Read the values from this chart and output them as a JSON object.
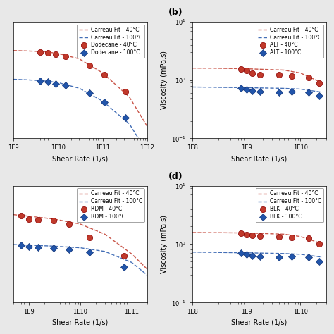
{
  "subplots": [
    {
      "label": "",
      "fluid": "Dodecane",
      "xlim": [
        1000000000.0,
        1000000000000.0
      ],
      "ylim": [
        0.08,
        4.0
      ],
      "xlabel": "Shear Rate (1/s)",
      "ylabel": "",
      "show_ylabel": false,
      "show_yticks": false,
      "xticks": [
        1000000000.0,
        10000000000.0,
        100000000000.0,
        1000000000000.0
      ],
      "legend_labels": [
        "Dodecane - 40°C",
        "Dodecane - 100°C",
        "Carreau Fit - 40°C",
        "Carreau Fit - 100°C"
      ],
      "data_40": {
        "x": [
          4000000000.0,
          6000000000.0,
          9000000000.0,
          15000000000.0,
          50000000000.0,
          110000000000.0,
          320000000000.0
        ],
        "y": [
          1.45,
          1.42,
          1.35,
          1.25,
          0.92,
          0.68,
          0.38
        ]
      },
      "data_100": {
        "x": [
          4000000000.0,
          6000000000.0,
          9000000000.0,
          15000000000.0,
          50000000000.0,
          110000000000.0,
          320000000000.0
        ],
        "y": [
          0.55,
          0.53,
          0.5,
          0.47,
          0.37,
          0.27,
          0.16
        ]
      },
      "fit_40": {
        "x": [
          1000000000.0,
          2000000000.0,
          5000000000.0,
          10000000000.0,
          30000000000.0,
          100000000000.0,
          400000000000.0,
          1000000000000.0
        ],
        "y": [
          1.52,
          1.5,
          1.46,
          1.38,
          1.15,
          0.72,
          0.32,
          0.12
        ]
      },
      "fit_100": {
        "x": [
          1000000000.0,
          2000000000.0,
          5000000000.0,
          10000000000.0,
          30000000000.0,
          100000000000.0,
          400000000000.0,
          1000000000000.0
        ],
        "y": [
          0.58,
          0.57,
          0.55,
          0.52,
          0.43,
          0.28,
          0.13,
          0.05
        ]
      }
    },
    {
      "label": "(b)",
      "fluid": "ALT",
      "xlim": [
        100000000.0,
        30000000000.0
      ],
      "ylim": [
        0.1,
        10
      ],
      "xlabel": "Shear Rate (1/s)",
      "ylabel": "Viscosity (mPa.s)",
      "show_ylabel": true,
      "show_yticks": true,
      "xticks": [
        100000000.0,
        1000000000.0,
        10000000000.0
      ],
      "legend_labels": [
        "ALT - 40°C",
        "ALT - 100°C",
        "Carreau Fit - 40°C",
        "Carreau Fit - 100°C"
      ],
      "data_40": {
        "x": [
          800000000.0,
          1000000000.0,
          1300000000.0,
          1800000000.0,
          4000000000.0,
          7000000000.0,
          14000000000.0,
          22000000000.0
        ],
        "y": [
          1.55,
          1.45,
          1.3,
          1.25,
          1.22,
          1.18,
          1.12,
          0.88
        ]
      },
      "data_100": {
        "x": [
          800000000.0,
          1000000000.0,
          1300000000.0,
          1800000000.0,
          4000000000.0,
          7000000000.0,
          14000000000.0,
          22000000000.0
        ],
        "y": [
          0.72,
          0.68,
          0.65,
          0.63,
          0.62,
          0.64,
          0.62,
          0.53
        ]
      },
      "fit_40": {
        "x": [
          100000000.0,
          300000000.0,
          1000000000.0,
          5000000000.0,
          10000000000.0,
          25000000000.0
        ],
        "y": [
          1.6,
          1.59,
          1.56,
          1.48,
          1.32,
          0.9
        ]
      },
      "fit_100": {
        "x": [
          100000000.0,
          300000000.0,
          1000000000.0,
          5000000000.0,
          10000000000.0,
          25000000000.0
        ],
        "y": [
          0.76,
          0.75,
          0.74,
          0.72,
          0.7,
          0.62
        ]
      }
    },
    {
      "label": "",
      "fluid": "RDM",
      "xlim": [
        500000000.0,
        200000000000.0
      ],
      "ylim": [
        0.1,
        8.0
      ],
      "xlabel": "Shear Rate (1/s)",
      "ylabel": "",
      "show_ylabel": false,
      "show_yticks": false,
      "xticks": [
        1000000000.0,
        10000000000.0,
        100000000000.0
      ],
      "legend_labels": [
        "RDM - 40°C",
        "RDM - 100°C",
        "Carreau Fit - 40°C",
        "Carreau Fit - 100°C"
      ],
      "data_40": {
        "x": [
          700000000.0,
          1000000000.0,
          1500000000.0,
          3000000000.0,
          6000000000.0,
          15000000000.0,
          70000000000.0
        ],
        "y": [
          2.6,
          2.3,
          2.2,
          2.15,
          1.9,
          1.15,
          0.58
        ]
      },
      "data_100": {
        "x": [
          700000000.0,
          1000000000.0,
          1500000000.0,
          3000000000.0,
          6000000000.0,
          15000000000.0,
          70000000000.0
        ],
        "y": [
          0.85,
          0.82,
          0.8,
          0.78,
          0.74,
          0.66,
          0.38
        ]
      },
      "fit_40": {
        "x": [
          500000000.0,
          1000000000.0,
          3000000000.0,
          10000000000.0,
          30000000000.0,
          100000000000.0,
          200000000000.0
        ],
        "y": [
          2.7,
          2.55,
          2.3,
          1.9,
          1.3,
          0.62,
          0.35
        ]
      },
      "fit_100": {
        "x": [
          500000000.0,
          1000000000.0,
          3000000000.0,
          10000000000.0,
          30000000000.0,
          100000000000.0,
          200000000000.0
        ],
        "y": [
          0.88,
          0.86,
          0.83,
          0.78,
          0.68,
          0.45,
          0.28
        ]
      }
    },
    {
      "label": "(d)",
      "fluid": "BLK",
      "xlim": [
        100000000.0,
        30000000000.0
      ],
      "ylim": [
        0.1,
        10
      ],
      "xlabel": "Shear Rate (1/s)",
      "ylabel": "Viscosity (mPa.s)",
      "show_ylabel": true,
      "show_yticks": true,
      "xticks": [
        100000000.0,
        1000000000.0,
        10000000000.0
      ],
      "legend_labels": [
        "BLK - 40°C",
        "BLK - 100°C",
        "Carreau Fit - 40°C",
        "Carreau Fit - 100°C"
      ],
      "data_40": {
        "x": [
          800000000.0,
          1000000000.0,
          1300000000.0,
          1800000000.0,
          4000000000.0,
          7000000000.0,
          14000000000.0,
          22000000000.0
        ],
        "y": [
          1.55,
          1.45,
          1.42,
          1.38,
          1.33,
          1.3,
          1.28,
          1.0
        ]
      },
      "data_100": {
        "x": [
          800000000.0,
          1000000000.0,
          1300000000.0,
          1800000000.0,
          4000000000.0,
          7000000000.0,
          14000000000.0,
          22000000000.0
        ],
        "y": [
          0.7,
          0.67,
          0.64,
          0.62,
          0.6,
          0.62,
          0.6,
          0.5
        ]
      },
      "fit_40": {
        "x": [
          100000000.0,
          300000000.0,
          1000000000.0,
          5000000000.0,
          10000000000.0,
          25000000000.0
        ],
        "y": [
          1.58,
          1.57,
          1.55,
          1.48,
          1.35,
          1.02
        ]
      },
      "fit_100": {
        "x": [
          100000000.0,
          300000000.0,
          1000000000.0,
          5000000000.0,
          10000000000.0,
          25000000000.0
        ],
        "y": [
          0.73,
          0.72,
          0.71,
          0.69,
          0.67,
          0.6
        ]
      }
    }
  ],
  "color_40": "#c0392b",
  "color_100": "#2255aa",
  "marker_40": "o",
  "marker_100": "D",
  "markersize_40": 6,
  "markersize_100": 5,
  "linewidth": 1.0,
  "bg_color": "#ffffff",
  "fig_bg": "#e8e8e8",
  "font_size": 6.5,
  "label_fontsize": 7,
  "legend_fontsize": 5.5,
  "tick_fontsize": 6
}
